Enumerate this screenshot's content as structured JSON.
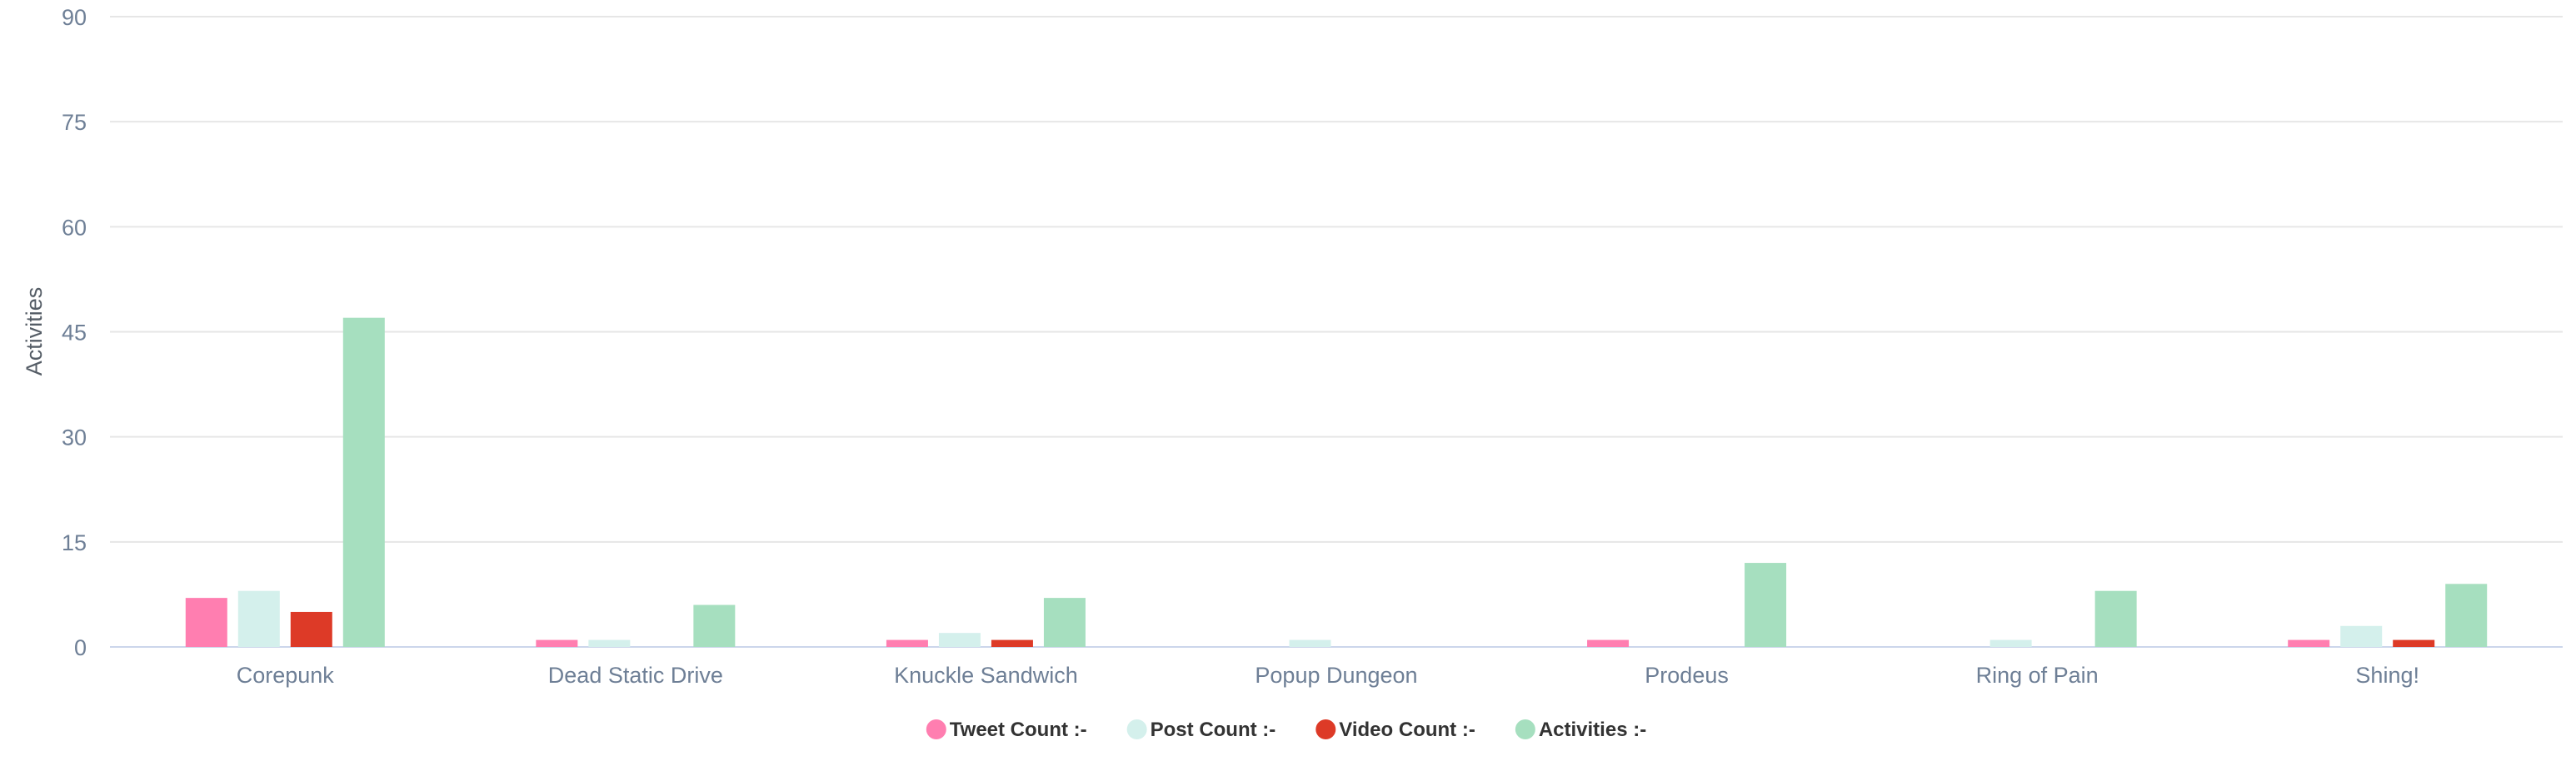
{
  "chart_data": {
    "type": "bar",
    "title": "",
    "xlabel": "",
    "ylabel": "Activities",
    "ylim": [
      0,
      90
    ],
    "yticks": [
      0,
      15,
      30,
      45,
      60,
      75,
      90
    ],
    "grid": true,
    "legend_position": "bottom-center",
    "categories": [
      "Corepunk",
      "Dead Static Drive",
      "Knuckle Sandwich",
      "Popup Dungeon",
      "Prodeus",
      "Ring of Pain",
      "Shing!"
    ],
    "series": [
      {
        "name": "Tweet Count :-",
        "color": "#ff7eb0",
        "values": [
          7,
          1,
          1,
          0,
          1,
          0,
          1
        ]
      },
      {
        "name": "Post Count :-",
        "color": "#d4f0ec",
        "values": [
          8,
          1,
          2,
          1,
          0,
          1,
          3
        ]
      },
      {
        "name": "Video Count :-",
        "color": "#dd3a27",
        "values": [
          5,
          0,
          1,
          0,
          0,
          0,
          1
        ]
      },
      {
        "name": "Activities :-",
        "color": "#a6dfbf",
        "values": [
          47,
          6,
          7,
          0,
          12,
          8,
          9
        ]
      }
    ]
  }
}
